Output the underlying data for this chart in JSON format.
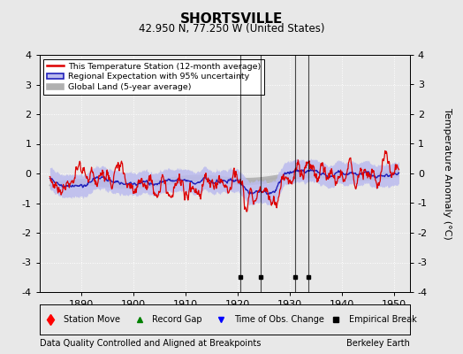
{
  "title": "SHORTSVILLE",
  "subtitle": "42.950 N, 77.250 W (United States)",
  "xlabel_left": "Data Quality Controlled and Aligned at Breakpoints",
  "xlabel_right": "Berkeley Earth",
  "ylabel": "Temperature Anomaly (°C)",
  "xlim": [
    1882,
    1953
  ],
  "ylim": [
    -4,
    4
  ],
  "x_ticks": [
    1890,
    1900,
    1910,
    1920,
    1930,
    1940,
    1950
  ],
  "y_ticks": [
    -4,
    -3,
    -2,
    -1,
    0,
    1,
    2,
    3,
    4
  ],
  "bg_color": "#e8e8e8",
  "plot_bg_color": "#e8e8e8",
  "grid_color": "#ffffff",
  "station_color": "#dd0000",
  "regional_color": "#2222bb",
  "regional_fill_color": "#bbbbee",
  "global_color": "#b0b0b0",
  "empirical_break_years": [
    1920.5,
    1924.5,
    1931.0,
    1933.5
  ],
  "empirical_break_marker_years": [
    1920.5,
    1924.5,
    1931.0,
    1933.5
  ],
  "seed": 77
}
